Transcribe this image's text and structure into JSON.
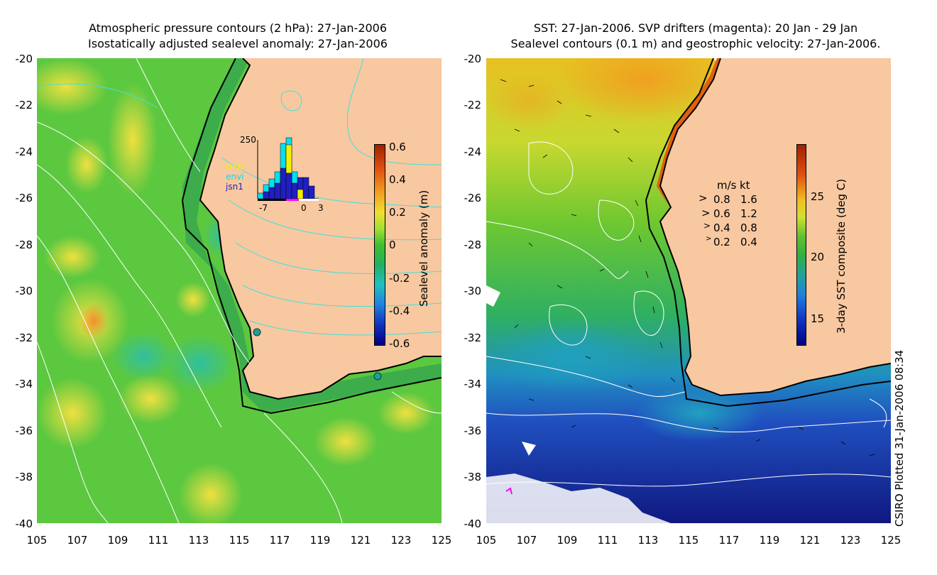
{
  "left_panel": {
    "title_line1": "Atmospheric pressure contours (2 hPa): 27-Jan-2006",
    "title_line2": "Isostatically adjusted sealevel anomaly: 27-Jan-2006",
    "colorbar_label": "Sealevel anomaly (m)",
    "colorbar_ticks": [
      "0.6",
      "0.4",
      "0.2",
      "0",
      "-0.2",
      "-0.4",
      "-0.6"
    ],
    "histogram": {
      "ymax_label": "250",
      "x_ticks": [
        "-7",
        "0",
        "3"
      ],
      "legend": [
        "GFO",
        "envi",
        "jsn1"
      ],
      "legend_colors": [
        "#f0f000",
        "#00e0f0",
        "#2020c0"
      ]
    },
    "markers": [
      "tide-gauge",
      "tide-gauge"
    ]
  },
  "right_panel": {
    "title_line1": "SST: 27-Jan-2006. SVP drifters (magenta): 20 Jan - 29 Jan",
    "title_line2": "Sealevel contours (0.1 m) and geostrophic velocity: 27-Jan-2006.",
    "colorbar_label": "3-day SST composite (deg C)",
    "colorbar_ticks": [
      "25",
      "20",
      "15"
    ],
    "velocity_legend": {
      "header_ms": "m/s",
      "header_kt": "kt",
      "rows": [
        {
          "ms": "0.8",
          "kt": "1.6"
        },
        {
          "ms": "0.6",
          "kt": "1.2"
        },
        {
          "ms": "0.4",
          "kt": "0.8"
        },
        {
          "ms": "0.2",
          "kt": "0.4"
        }
      ]
    }
  },
  "axes": {
    "y_ticks": [
      "-20",
      "-22",
      "-24",
      "-26",
      "-28",
      "-30",
      "-32",
      "-34",
      "-36",
      "-38",
      "-40"
    ],
    "x_ticks": [
      "105",
      "107",
      "109",
      "111",
      "113",
      "115",
      "117",
      "119",
      "121",
      "123",
      "125"
    ]
  },
  "credit": "CSIRO Plotted 31-Jan-2006 08:34",
  "colors": {
    "land": "#f8c8a0",
    "coast": "#000000",
    "ocean_green": "#48c040",
    "shelf_green": "#30a050"
  }
}
